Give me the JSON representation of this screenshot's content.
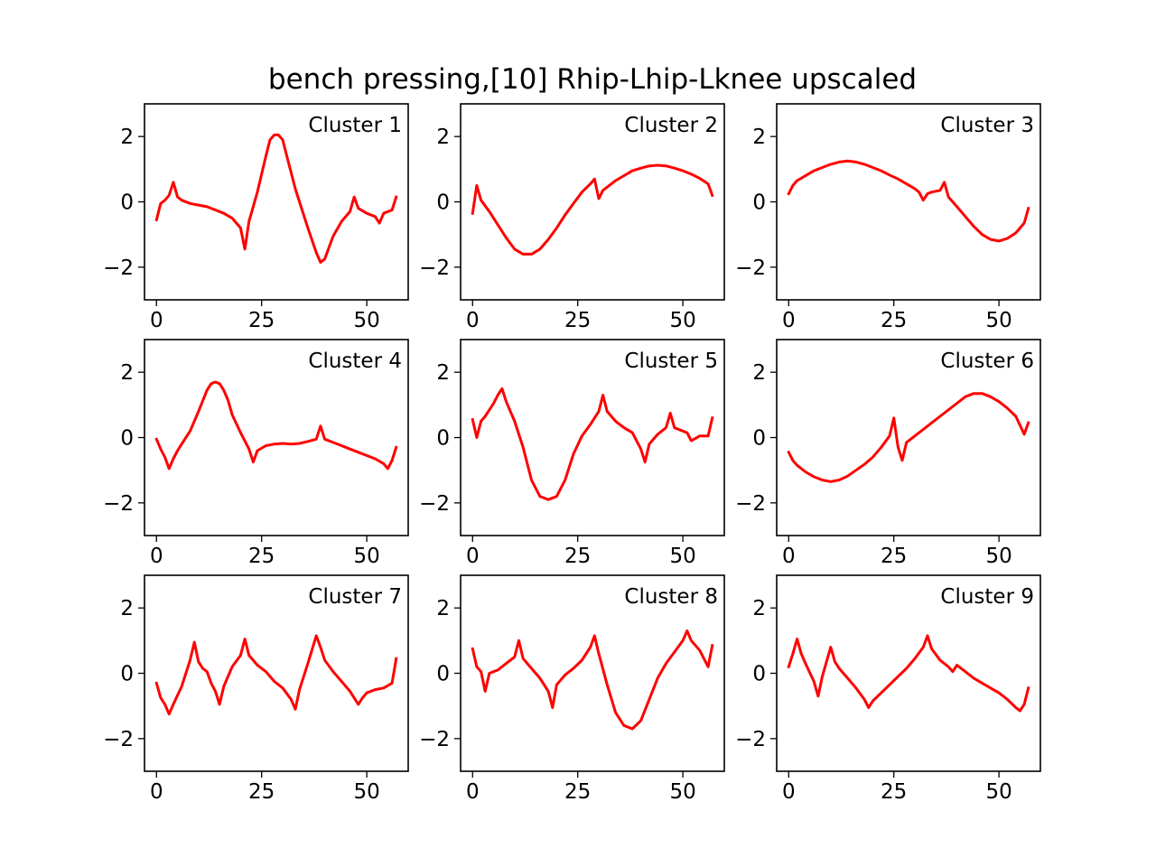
{
  "chart_data": {
    "type": "line",
    "title": "bench pressing,[10] Rhip-Lhip-Lknee upscaled",
    "line_color": "#ff0000",
    "xlim": [
      -2.85,
      59.85
    ],
    "ylim": [
      -3,
      3
    ],
    "xticks": [
      0,
      25,
      50
    ],
    "yticks": [
      2,
      0,
      -2
    ],
    "grid": false,
    "panels": [
      {
        "label": "Cluster 1",
        "x": [
          0,
          1,
          2,
          3,
          4,
          5,
          6,
          8,
          10,
          12,
          14,
          16,
          18,
          20,
          21,
          22,
          24,
          26,
          27,
          28,
          29,
          30,
          31,
          32,
          33,
          34,
          36,
          38,
          39,
          40,
          41,
          42,
          44,
          46,
          47,
          48,
          50,
          52,
          53,
          54,
          56,
          57
        ],
        "y": [
          -0.55,
          -0.05,
          0.05,
          0.2,
          0.6,
          0.15,
          0.05,
          -0.05,
          -0.1,
          -0.15,
          -0.25,
          -0.35,
          -0.5,
          -0.8,
          -1.45,
          -0.6,
          0.3,
          1.4,
          1.9,
          2.05,
          2.05,
          1.9,
          1.4,
          0.9,
          0.4,
          0,
          -0.8,
          -1.55,
          -1.85,
          -1.75,
          -1.4,
          -1.05,
          -0.6,
          -0.3,
          0.15,
          -0.2,
          -0.35,
          -0.45,
          -0.65,
          -0.35,
          -0.25,
          0.15
        ]
      },
      {
        "label": "Cluster 2",
        "x": [
          0,
          1,
          2,
          4,
          6,
          8,
          10,
          12,
          14,
          16,
          18,
          20,
          22,
          24,
          26,
          28,
          29,
          30,
          31,
          32,
          34,
          36,
          38,
          40,
          42,
          44,
          46,
          48,
          50,
          52,
          54,
          56,
          57
        ],
        "y": [
          -0.35,
          0.5,
          0.05,
          -0.3,
          -0.7,
          -1.1,
          -1.45,
          -1.6,
          -1.6,
          -1.45,
          -1.15,
          -0.8,
          -0.4,
          -0.05,
          0.3,
          0.55,
          0.7,
          0.1,
          0.35,
          0.45,
          0.65,
          0.8,
          0.95,
          1.03,
          1.1,
          1.12,
          1.1,
          1.03,
          0.95,
          0.85,
          0.72,
          0.55,
          0.2
        ]
      },
      {
        "label": "Cluster 3",
        "x": [
          0,
          1,
          2,
          4,
          6,
          8,
          10,
          12,
          14,
          16,
          18,
          20,
          22,
          24,
          26,
          28,
          30,
          31,
          32,
          33,
          34,
          36,
          37,
          38,
          40,
          42,
          44,
          46,
          48,
          50,
          52,
          54,
          56,
          57
        ],
        "y": [
          0.25,
          0.5,
          0.65,
          0.8,
          0.95,
          1.05,
          1.15,
          1.22,
          1.25,
          1.22,
          1.15,
          1.05,
          0.95,
          0.82,
          0.7,
          0.55,
          0.4,
          0.3,
          0.05,
          0.25,
          0.3,
          0.35,
          0.6,
          0.15,
          -0.15,
          -0.45,
          -0.75,
          -1,
          -1.15,
          -1.2,
          -1.12,
          -0.95,
          -0.65,
          -0.2
        ]
      },
      {
        "label": "Cluster 4",
        "x": [
          0,
          1,
          2,
          3,
          4,
          5,
          6,
          8,
          10,
          12,
          13,
          14,
          15,
          16,
          17,
          18,
          20,
          22,
          23,
          24,
          26,
          28,
          30,
          32,
          34,
          36,
          38,
          39,
          40,
          42,
          44,
          46,
          48,
          50,
          52,
          54,
          55,
          56,
          57
        ],
        "y": [
          -0.05,
          -0.35,
          -0.6,
          -0.95,
          -0.65,
          -0.4,
          -0.2,
          0.2,
          0.8,
          1.45,
          1.65,
          1.7,
          1.65,
          1.45,
          1.15,
          0.7,
          0.15,
          -0.35,
          -0.75,
          -0.4,
          -0.25,
          -0.2,
          -0.18,
          -0.2,
          -0.18,
          -0.12,
          -0.05,
          0.35,
          -0.05,
          -0.15,
          -0.25,
          -0.35,
          -0.45,
          -0.55,
          -0.65,
          -0.8,
          -0.95,
          -0.7,
          -0.3
        ]
      },
      {
        "label": "Cluster 5",
        "x": [
          0,
          1,
          2,
          3,
          4,
          5,
          6,
          7,
          8,
          10,
          12,
          14,
          16,
          18,
          20,
          22,
          24,
          26,
          28,
          30,
          31,
          32,
          34,
          36,
          38,
          40,
          41,
          42,
          44,
          46,
          47,
          48,
          50,
          51,
          52,
          54,
          56,
          57
        ],
        "y": [
          0.55,
          0,
          0.5,
          0.65,
          0.85,
          1.05,
          1.3,
          1.5,
          1.1,
          0.5,
          -0.3,
          -1.3,
          -1.8,
          -1.9,
          -1.8,
          -1.3,
          -0.5,
          0.05,
          0.4,
          0.8,
          1.3,
          0.8,
          0.5,
          0.3,
          0.15,
          -0.35,
          -0.75,
          -0.2,
          0.1,
          0.3,
          0.75,
          0.3,
          0.2,
          0.15,
          -0.1,
          0.05,
          0.05,
          0.6
        ]
      },
      {
        "label": "Cluster 6",
        "x": [
          0,
          1,
          2,
          4,
          6,
          8,
          10,
          12,
          14,
          16,
          18,
          20,
          22,
          24,
          25,
          26,
          27,
          28,
          30,
          32,
          34,
          36,
          38,
          40,
          42,
          44,
          46,
          48,
          50,
          52,
          54,
          56,
          57
        ],
        "y": [
          -0.45,
          -0.7,
          -0.85,
          -1.05,
          -1.2,
          -1.3,
          -1.35,
          -1.3,
          -1.18,
          -1,
          -0.82,
          -0.6,
          -0.3,
          0.05,
          0.6,
          -0.3,
          -0.7,
          -0.15,
          0.05,
          0.25,
          0.45,
          0.65,
          0.85,
          1.05,
          1.25,
          1.35,
          1.35,
          1.25,
          1.1,
          0.9,
          0.65,
          0.1,
          0.45
        ]
      },
      {
        "label": "Cluster 7",
        "x": [
          0,
          1,
          2,
          3,
          4,
          6,
          8,
          9,
          10,
          11,
          12,
          13,
          14,
          15,
          16,
          18,
          20,
          21,
          22,
          24,
          26,
          28,
          30,
          32,
          33,
          34,
          36,
          38,
          39,
          40,
          42,
          44,
          46,
          48,
          49,
          50,
          52,
          54,
          56,
          57
        ],
        "y": [
          -0.3,
          -0.75,
          -0.95,
          -1.25,
          -0.95,
          -0.4,
          0.4,
          0.95,
          0.35,
          0.15,
          0.05,
          -0.3,
          -0.55,
          -0.95,
          -0.4,
          0.2,
          0.55,
          1.05,
          0.55,
          0.25,
          0.05,
          -0.25,
          -0.45,
          -0.8,
          -1.1,
          -0.5,
          0.3,
          1.15,
          0.8,
          0.4,
          0.05,
          -0.25,
          -0.55,
          -0.95,
          -0.75,
          -0.6,
          -0.5,
          -0.45,
          -0.3,
          0.45
        ]
      },
      {
        "label": "Cluster 8",
        "x": [
          0,
          1,
          2,
          3,
          4,
          6,
          8,
          10,
          11,
          12,
          14,
          16,
          18,
          19,
          20,
          22,
          24,
          26,
          28,
          29,
          30,
          32,
          34,
          36,
          38,
          40,
          42,
          44,
          46,
          48,
          50,
          51,
          52,
          54,
          56,
          57
        ],
        "y": [
          0.75,
          0.2,
          0.05,
          -0.55,
          0,
          0.1,
          0.3,
          0.5,
          1,
          0.45,
          0.15,
          -0.15,
          -0.55,
          -1.05,
          -0.35,
          -0.05,
          0.15,
          0.4,
          0.8,
          1.15,
          0.6,
          -0.35,
          -1.2,
          -1.6,
          -1.7,
          -1.45,
          -0.8,
          -0.15,
          0.3,
          0.65,
          1,
          1.3,
          1,
          0.7,
          0.2,
          0.85
        ]
      },
      {
        "label": "Cluster 9",
        "x": [
          0,
          1,
          2,
          3,
          4,
          6,
          7,
          8,
          10,
          11,
          12,
          14,
          16,
          18,
          19,
          20,
          22,
          24,
          26,
          28,
          30,
          32,
          33,
          34,
          36,
          38,
          39,
          40,
          42,
          44,
          46,
          48,
          50,
          52,
          54,
          55,
          56,
          57
        ],
        "y": [
          0.2,
          0.6,
          1.05,
          0.6,
          0.3,
          -0.25,
          -0.7,
          -0.1,
          0.8,
          0.35,
          0.15,
          -0.15,
          -0.45,
          -0.8,
          -1.05,
          -0.85,
          -0.6,
          -0.35,
          -0.1,
          0.15,
          0.45,
          0.8,
          1.15,
          0.75,
          0.4,
          0.2,
          0.05,
          0.25,
          0.05,
          -0.15,
          -0.3,
          -0.45,
          -0.6,
          -0.8,
          -1.05,
          -1.15,
          -0.95,
          -0.45
        ]
      }
    ]
  }
}
